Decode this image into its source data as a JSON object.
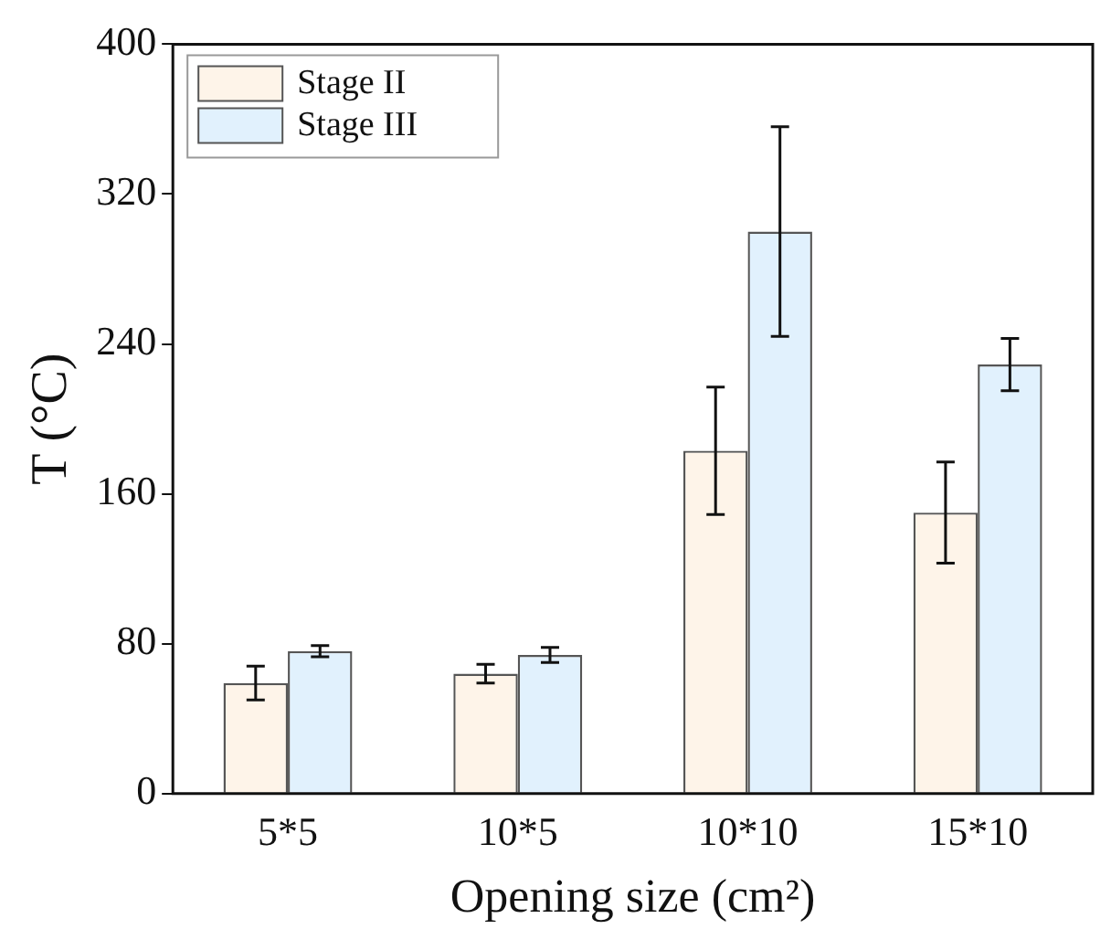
{
  "chart_data": {
    "type": "bar",
    "xlabel": "Opening size (cm²)",
    "ylabel": "T (°C)",
    "categories": [
      "5*5",
      "10*5",
      "10*10",
      "15*10"
    ],
    "series": [
      {
        "name": "Stage II",
        "color": "#fef4e9",
        "values": [
          59,
          64,
          183,
          150
        ],
        "errors": [
          9,
          5,
          34,
          27
        ]
      },
      {
        "name": "Stage III",
        "color": "#e1f1fd",
        "values": [
          76,
          74,
          300,
          229
        ],
        "errors": [
          3,
          4,
          56,
          14
        ]
      }
    ],
    "ylim": [
      0,
      400
    ],
    "yticks": [
      0,
      80,
      160,
      240,
      320,
      400
    ],
    "grid": false,
    "legend": "top left"
  }
}
